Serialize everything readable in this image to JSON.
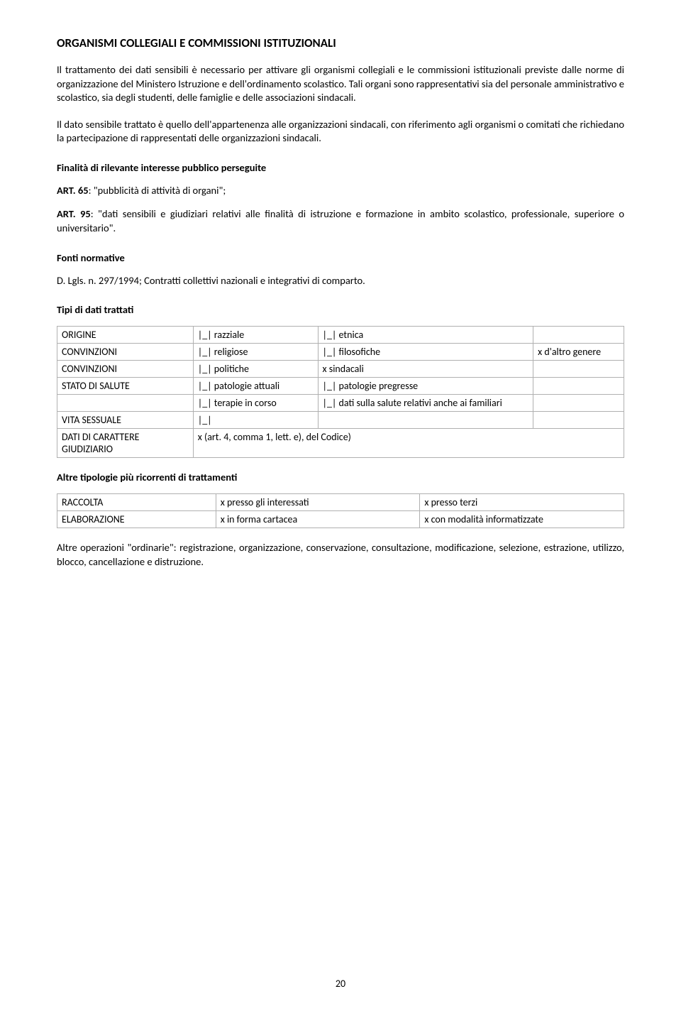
{
  "title": "ORGANISMI COLLEGIALI E COMMISSIONI ISTITUZIONALI",
  "para1": "Il trattamento dei dati sensibili è necessario per attivare gli organismi collegiali e le commissioni istituzionali previste dalle norme di organizzazione del Ministero Istruzione e dell'ordinamento scolastico. Tali organi sono rappresentativi sia del personale amministrativo e scolastico, sia degli studenti, delle famiglie e delle associazioni sindacali.",
  "para2": "Il dato sensibile trattato è quello dell'appartenenza alle organizzazioni sindacali, con riferimento agli organismi o comitati che richiedano la partecipazione di rappresentati delle organizzazioni sindacali.",
  "h_finalita": "Finalità di rilevante interesse pubblico perseguite",
  "art65_label": "ART. 65",
  "art65_text": ": \"pubblicità di attività di organi\";",
  "art95_label": "ART. 95",
  "art95_text": ": \"dati sensibili e giudiziari relativi alle finalità di istruzione e formazione in ambito scolastico, professionale, superiore o universitario\".",
  "h_fonti": "Fonti normative",
  "fonti_text": "D. Lgls. n. 297/1994; Contratti collettivi nazionali e integrativi di comparto.",
  "h_tipi": "Tipi di dati trattati",
  "table1": {
    "rows": [
      [
        "ORIGINE",
        "|_| razziale",
        "|_| etnica",
        ""
      ],
      [
        "CONVINZIONI",
        "|_| religiose",
        "|_| filosofiche",
        "x d'altro genere"
      ],
      [
        "CONVINZIONI",
        "|_| politiche",
        "x sindacali",
        ""
      ],
      [
        "STATO DI SALUTE",
        "|_| patologie attuali",
        "|_| patologie pregresse",
        ""
      ],
      [
        "",
        "|_| terapie in corso",
        "|_| dati sulla salute relativi anche ai familiari",
        ""
      ],
      [
        "VITA SESSUALE",
        "|_|",
        "",
        ""
      ],
      [
        "DATI DI CARATTERE GIUDIZIARIO",
        "x (art. 4, comma 1, lett. e), del Codice)",
        "",
        ""
      ]
    ]
  },
  "h_altre": "Altre tipologie più ricorrenti di trattamenti",
  "table2": {
    "rows": [
      [
        "RACCOLTA",
        "x presso gli interessati",
        "x presso terzi"
      ],
      [
        "ELABORAZIONE",
        "x in forma cartacea",
        "x con modalità informatizzate"
      ]
    ]
  },
  "para3": "Altre operazioni \"ordinarie\": registrazione, organizzazione, conservazione, consultazione, modificazione, selezione, estrazione, utilizzo, blocco, cancellazione e distruzione.",
  "page_number": "20"
}
